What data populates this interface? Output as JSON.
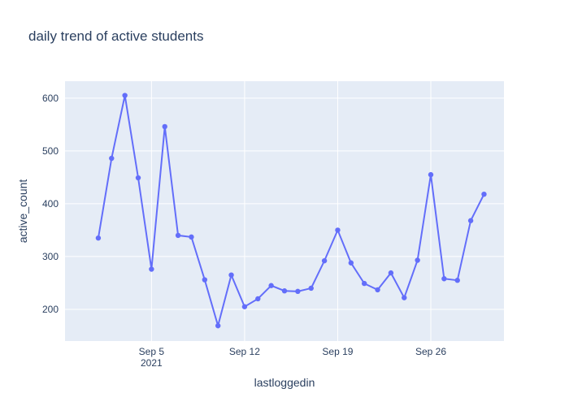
{
  "chart_data": {
    "type": "line",
    "title": "daily trend of active students",
    "xlabel": "lastloggedin",
    "ylabel": "active_count",
    "x": [
      "2021-09-01",
      "2021-09-02",
      "2021-09-03",
      "2021-09-04",
      "2021-09-05",
      "2021-09-06",
      "2021-09-07",
      "2021-09-08",
      "2021-09-09",
      "2021-09-10",
      "2021-09-11",
      "2021-09-12",
      "2021-09-13",
      "2021-09-14",
      "2021-09-15",
      "2021-09-16",
      "2021-09-17",
      "2021-09-18",
      "2021-09-19",
      "2021-09-20",
      "2021-09-21",
      "2021-09-22",
      "2021-09-23",
      "2021-09-24",
      "2021-09-25",
      "2021-09-26",
      "2021-09-27",
      "2021-09-28",
      "2021-09-29",
      "2021-09-30"
    ],
    "series": [
      {
        "values": [
          335,
          486,
          605,
          449,
          276,
          546,
          340,
          337,
          256,
          169,
          265,
          205,
          220,
          245,
          235,
          234,
          240,
          292,
          350,
          288,
          249,
          237,
          269,
          222,
          293,
          455,
          258,
          255,
          368,
          418
        ]
      }
    ],
    "xlim": [
      "2021-08-29T12:00",
      "2021-10-01T12:00"
    ],
    "ylim": [
      140,
      632
    ],
    "x_ticks": [
      {
        "date": "2021-09-05",
        "label": "Sep 5",
        "sublabel": "2021"
      },
      {
        "date": "2021-09-12",
        "label": "Sep 12"
      },
      {
        "date": "2021-09-19",
        "label": "Sep 19"
      },
      {
        "date": "2021-09-26",
        "label": "Sep 26"
      }
    ],
    "y_ticks": [
      200,
      300,
      400,
      500,
      600
    ],
    "grid": true,
    "colors": {
      "line": "#636efa",
      "plot_bg": "#e5ecf6",
      "grid": "#ffffff"
    }
  }
}
